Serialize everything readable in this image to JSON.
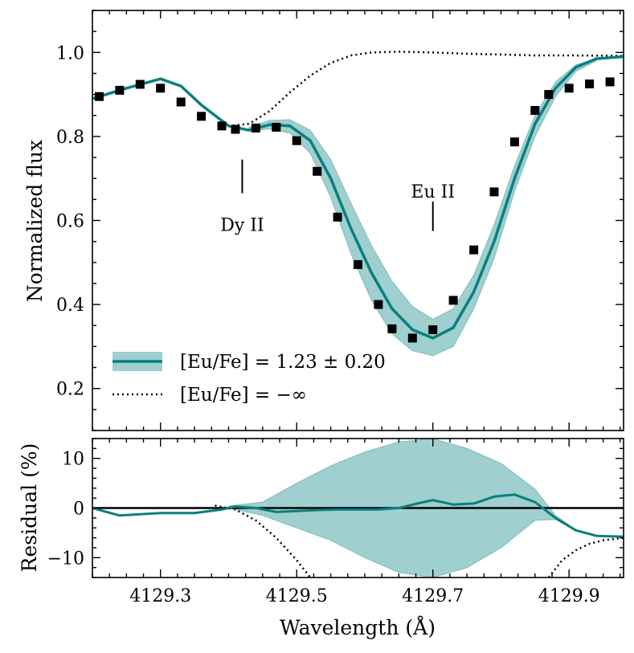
{
  "chart_data": [
    {
      "type": "line",
      "panel": "top",
      "ylabel": "Normalized flux",
      "xlim": [
        4129.2,
        4129.98
      ],
      "ylim": [
        0.1,
        1.1
      ],
      "yticks": [
        0.2,
        0.4,
        0.6,
        0.8,
        1.0
      ],
      "ytick_labels": [
        "0.2",
        "0.4",
        "0.6",
        "0.8",
        "1.0"
      ],
      "annotations": [
        {
          "text": "Dy II",
          "x": 4129.42,
          "line_y": [
            0.665,
            0.745
          ],
          "text_y": 0.59
        },
        {
          "text": "Eu II",
          "x": 4129.7,
          "line_y": [
            0.575,
            0.645
          ],
          "text_y": 0.67
        }
      ],
      "legend": {
        "placement": "lower-left",
        "entries": [
          {
            "label": "[Eu/Fe] = 1.23 ± 0.20",
            "style": "teal line with shaded band"
          },
          {
            "label": "[Eu/Fe] = −∞",
            "style": "dotted black line"
          }
        ]
      },
      "series": [
        {
          "name": "observed",
          "style": "black-squares",
          "x": [
            4129.21,
            4129.24,
            4129.27,
            4129.3,
            4129.33,
            4129.36,
            4129.39,
            4129.41,
            4129.44,
            4129.47,
            4129.5,
            4129.53,
            4129.56,
            4129.59,
            4129.62,
            4129.64,
            4129.67,
            4129.7,
            4129.73,
            4129.76,
            4129.79,
            4129.82,
            4129.85,
            4129.87,
            4129.9,
            4129.93,
            4129.96
          ],
          "y": [
            0.895,
            0.91,
            0.924,
            0.915,
            0.882,
            0.848,
            0.825,
            0.817,
            0.82,
            0.822,
            0.79,
            0.717,
            0.608,
            0.495,
            0.4,
            0.342,
            0.32,
            0.34,
            0.41,
            0.53,
            0.668,
            0.787,
            0.862,
            0.9,
            0.915,
            0.925,
            0.93
          ]
        },
        {
          "name": "[Eu/Fe] = 1.23 ± 0.20",
          "style": "teal-line",
          "color": "#0a7f7f",
          "x": [
            4129.2,
            4129.25,
            4129.3,
            4129.33,
            4129.36,
            4129.4,
            4129.43,
            4129.46,
            4129.49,
            4129.52,
            4129.55,
            4129.58,
            4129.61,
            4129.64,
            4129.67,
            4129.7,
            4129.73,
            4129.76,
            4129.79,
            4129.82,
            4129.85,
            4129.88,
            4129.91,
            4129.94,
            4129.98
          ],
          "y": [
            0.89,
            0.915,
            0.937,
            0.92,
            0.875,
            0.825,
            0.815,
            0.828,
            0.825,
            0.79,
            0.7,
            0.58,
            0.475,
            0.39,
            0.34,
            0.32,
            0.345,
            0.43,
            0.55,
            0.7,
            0.83,
            0.915,
            0.965,
            0.985,
            0.99
          ]
        },
        {
          "name": "uncertainty band",
          "style": "teal-band",
          "color": "#9fcfcf",
          "x": [
            4129.43,
            4129.46,
            4129.49,
            4129.52,
            4129.55,
            4129.58,
            4129.61,
            4129.64,
            4129.67,
            4129.7,
            4129.73,
            4129.76,
            4129.79,
            4129.82,
            4129.85,
            4129.88,
            4129.91,
            4129.94
          ],
          "upper": [
            0.822,
            0.838,
            0.84,
            0.815,
            0.745,
            0.64,
            0.54,
            0.455,
            0.395,
            0.365,
            0.39,
            0.47,
            0.59,
            0.73,
            0.85,
            0.93,
            0.97,
            0.985
          ],
          "lower": [
            0.812,
            0.818,
            0.808,
            0.76,
            0.655,
            0.52,
            0.41,
            0.33,
            0.29,
            0.278,
            0.3,
            0.39,
            0.51,
            0.67,
            0.8,
            0.895,
            0.955,
            0.98
          ]
        },
        {
          "name": "[Eu/Fe] = −∞",
          "style": "dotted-black",
          "x": [
            4129.2,
            4129.25,
            4129.3,
            4129.33,
            4129.36,
            4129.4,
            4129.43,
            4129.46,
            4129.49,
            4129.52,
            4129.55,
            4129.58,
            4129.61,
            4129.65,
            4129.7,
            4129.75,
            4129.8,
            4129.85,
            4129.9,
            4129.98
          ],
          "y": [
            0.89,
            0.915,
            0.937,
            0.92,
            0.875,
            0.825,
            0.83,
            0.86,
            0.905,
            0.945,
            0.975,
            0.993,
            1.0,
            1.002,
            1.0,
            0.997,
            0.995,
            0.993,
            0.993,
            0.992
          ]
        }
      ]
    },
    {
      "type": "line",
      "panel": "bottom",
      "xlabel": "Wavelength (Å)",
      "ylabel": "Residual (%)",
      "xlim": [
        4129.2,
        4129.98
      ],
      "ylim": [
        -14,
        14
      ],
      "xticks": [
        4129.3,
        4129.5,
        4129.7,
        4129.9
      ],
      "xtick_labels": [
        "4129.3",
        "4129.5",
        "4129.7",
        "4129.9"
      ],
      "yticks": [
        -10,
        0,
        10
      ],
      "ytick_labels": [
        "−10",
        "0",
        "10"
      ],
      "zero_line": 0,
      "series": [
        {
          "name": "residual",
          "style": "teal-line",
          "color": "#0a7f7f",
          "x": [
            4129.2,
            4129.24,
            4129.3,
            4129.35,
            4129.39,
            4129.41,
            4129.44,
            4129.47,
            4129.5,
            4129.53,
            4129.56,
            4129.59,
            4129.62,
            4129.65,
            4129.68,
            4129.7,
            4129.73,
            4129.76,
            4129.79,
            4129.82,
            4129.85,
            4129.88,
            4129.91,
            4129.94,
            4129.98
          ],
          "y": [
            0,
            -1.5,
            -1.0,
            -1.0,
            -0.3,
            0.3,
            0,
            -0.8,
            -0.6,
            -0.4,
            -0.3,
            -0.3,
            -0.3,
            0,
            1,
            1.6,
            0.7,
            0.9,
            2.3,
            2.7,
            1.2,
            -2.0,
            -4.5,
            -5.6,
            -5.8
          ]
        },
        {
          "name": "residual band",
          "style": "teal-band",
          "color": "#9fcfcf",
          "x": [
            4129.4,
            4129.45,
            4129.5,
            4129.55,
            4129.6,
            4129.65,
            4129.7,
            4129.75,
            4129.8,
            4129.85,
            4129.88,
            4129.91,
            4129.94,
            4129.98
          ],
          "upper": [
            0.4,
            1.2,
            5,
            8.5,
            11.3,
            13.3,
            14,
            12,
            9,
            3.8,
            -1.5,
            -4.4,
            -5.5,
            -5.8
          ],
          "lower": [
            0,
            -1.5,
            -4,
            -6.5,
            -10,
            -13,
            -14,
            -12,
            -8,
            -2.5,
            -2.3,
            -4.6,
            -5.7,
            -5.9
          ]
        },
        {
          "name": "dotted residual left",
          "style": "dotted-black",
          "x": [
            4129.38,
            4129.41,
            4129.44,
            4129.47,
            4129.5,
            4129.52
          ],
          "y": [
            0.5,
            -0.3,
            -2.5,
            -6.0,
            -10.5,
            -14
          ]
        },
        {
          "name": "dotted residual right",
          "style": "dotted-black",
          "x": [
            4129.87,
            4129.89,
            4129.91,
            4129.93,
            4129.95,
            4129.98
          ],
          "y": [
            -14,
            -10.5,
            -8.5,
            -7.2,
            -6.5,
            -6.0
          ]
        }
      ]
    }
  ]
}
